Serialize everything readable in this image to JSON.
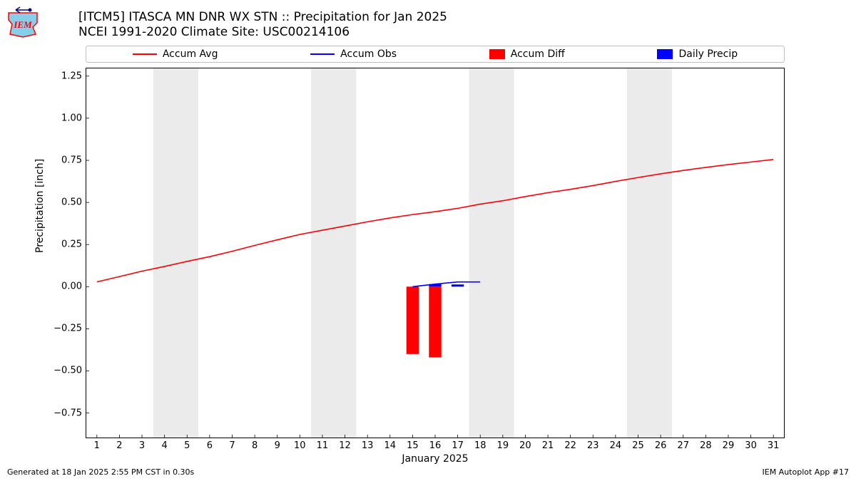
{
  "title": {
    "line1": "[ITCM5] ITASCA MN DNR WX STN :: Precipitation for Jan 2025",
    "line2": "NCEI 1991-2020 Climate Site: USC00214106"
  },
  "legend": {
    "items": [
      {
        "label": "Accum Avg",
        "type": "line",
        "color": "#ff0000"
      },
      {
        "label": "Accum Obs",
        "type": "line",
        "color": "#0000ff"
      },
      {
        "label": "Accum Diff",
        "type": "bar",
        "color": "#ff0000"
      },
      {
        "label": "Daily Precip",
        "type": "bar",
        "color": "#0000ff"
      }
    ]
  },
  "axes": {
    "ylabel": "Precipitation [inch]",
    "xlabel": "January 2025",
    "xlim": [
      0.5,
      31.5
    ],
    "ylim": [
      -0.9,
      1.3
    ],
    "xticks": [
      1,
      2,
      3,
      4,
      5,
      6,
      7,
      8,
      9,
      10,
      11,
      12,
      13,
      14,
      15,
      16,
      17,
      18,
      19,
      20,
      21,
      22,
      23,
      24,
      25,
      26,
      27,
      28,
      29,
      30,
      31
    ],
    "yticks": [
      -0.75,
      -0.5,
      -0.25,
      0.0,
      0.25,
      0.5,
      0.75,
      1.0,
      1.25
    ],
    "yticklabels": [
      "−0.75",
      "−0.50",
      "−0.25",
      "0.00",
      "0.25",
      "0.50",
      "0.75",
      "1.00",
      "1.25"
    ],
    "tick_fontsize": 13,
    "label_fontsize": 14
  },
  "weekend_bands": {
    "color": "#ebebeb",
    "ranges": [
      [
        3.5,
        5.5
      ],
      [
        10.5,
        12.5
      ],
      [
        17.5,
        19.5
      ],
      [
        24.5,
        26.5
      ]
    ]
  },
  "series": {
    "accum_avg": {
      "color": "#ff0000",
      "linewidth": 1.6,
      "x": [
        1,
        2,
        3,
        4,
        5,
        6,
        7,
        8,
        9,
        10,
        11,
        12,
        13,
        14,
        15,
        16,
        17,
        18,
        19,
        20,
        21,
        22,
        23,
        24,
        25,
        26,
        27,
        28,
        29,
        30,
        31
      ],
      "y": [
        0.028,
        0.06,
        0.092,
        0.12,
        0.15,
        0.178,
        0.21,
        0.245,
        0.278,
        0.31,
        0.335,
        0.36,
        0.385,
        0.408,
        0.428,
        0.445,
        0.465,
        0.49,
        0.51,
        0.535,
        0.558,
        0.578,
        0.6,
        0.625,
        0.648,
        0.67,
        0.69,
        0.708,
        0.725,
        0.74,
        0.755
      ]
    },
    "accum_obs": {
      "color": "#0000ff",
      "linewidth": 1.6,
      "x": [
        15,
        16,
        17,
        18
      ],
      "y": [
        0.0,
        0.015,
        0.028,
        0.028
      ]
    },
    "daily_precip": {
      "color": "#0000ff",
      "bar_width": 0.55,
      "x": [
        16,
        17
      ],
      "y": [
        0.015,
        0.013
      ]
    },
    "accum_diff": {
      "color": "#ff0000",
      "bar_width": 0.55,
      "x": [
        15,
        16
      ],
      "y": [
        -0.4,
        -0.42
      ]
    }
  },
  "footer": {
    "left": "Generated at 18 Jan 2025 2:55 PM CST in 0.30s",
    "right": "IEM Autoplot App #17"
  },
  "logo": {
    "text": "IEM",
    "outline_color": "#ff0000",
    "accent_color": "#00008b",
    "fill_color": "#87ceeb"
  }
}
